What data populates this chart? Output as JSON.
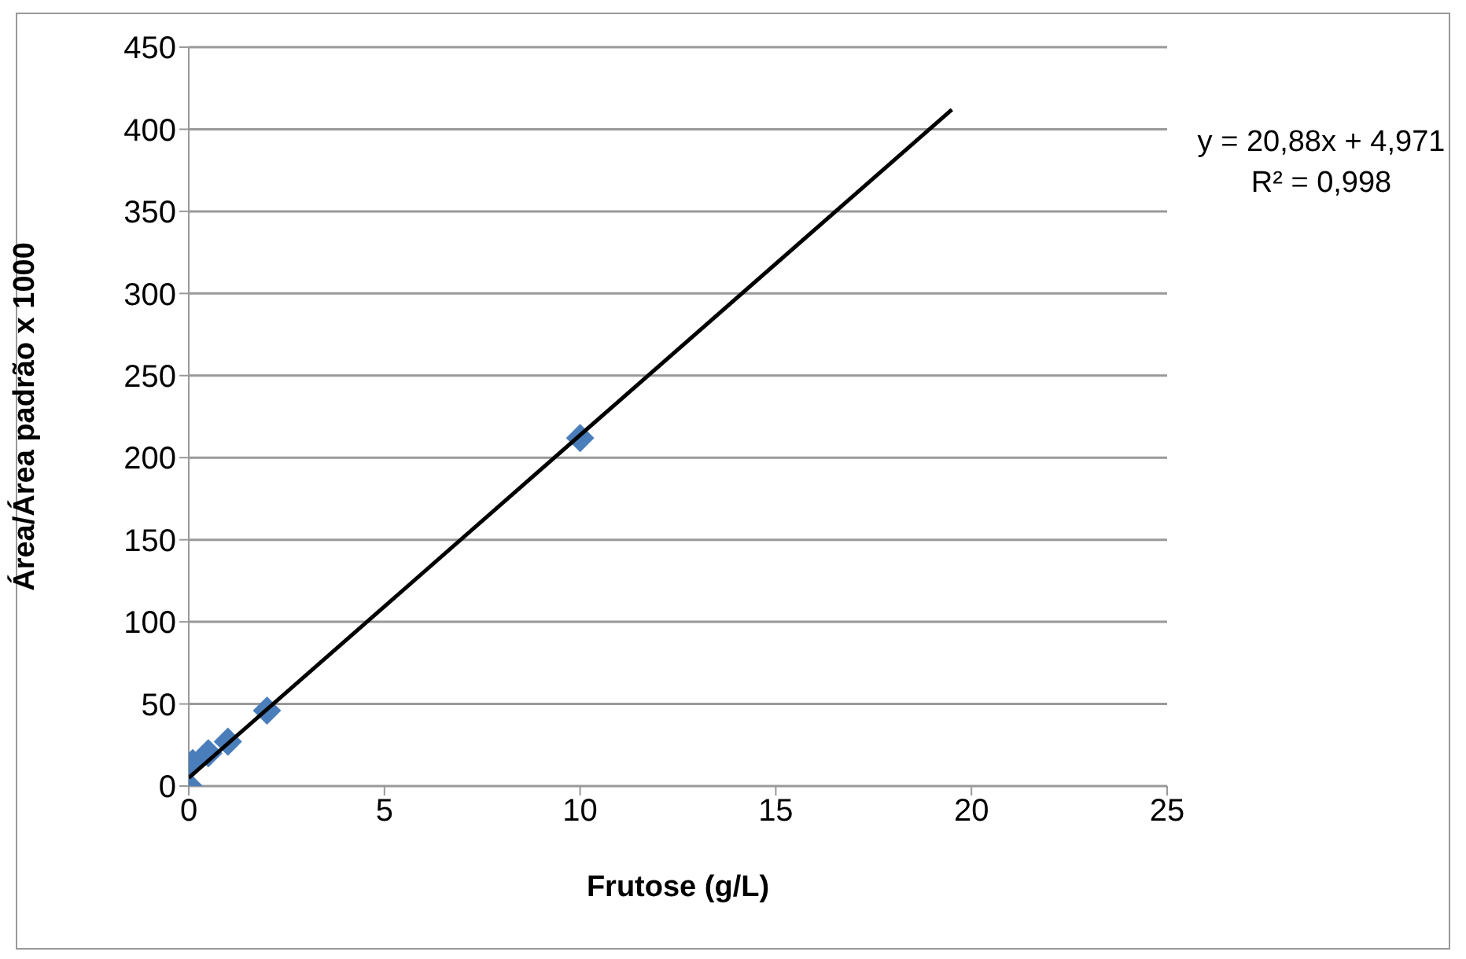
{
  "chart_data": {
    "type": "scatter",
    "xlabel": "Frutose (g/L)",
    "ylabel": "Área/Área padrão x 1000",
    "xlim": [
      0,
      25
    ],
    "xticks": [
      0,
      5,
      10,
      15,
      20,
      25
    ],
    "ylim": [
      0,
      450
    ],
    "yticks": [
      0,
      50,
      100,
      150,
      200,
      250,
      300,
      350,
      400,
      450
    ],
    "grid": "y",
    "series": [
      {
        "marker": "diamond",
        "color": "#4a7ebb",
        "x": [
          0,
          0.1,
          0.5,
          1,
          2,
          10
        ],
        "values": [
          0,
          14,
          20,
          27,
          46,
          212
        ]
      },
      {
        "type": "line",
        "color": "#000000",
        "x": [
          0,
          19.5
        ],
        "values": [
          5,
          412
        ]
      }
    ],
    "annotations": [
      "y = 20,88x + 4,971",
      "R² = 0,998"
    ]
  }
}
